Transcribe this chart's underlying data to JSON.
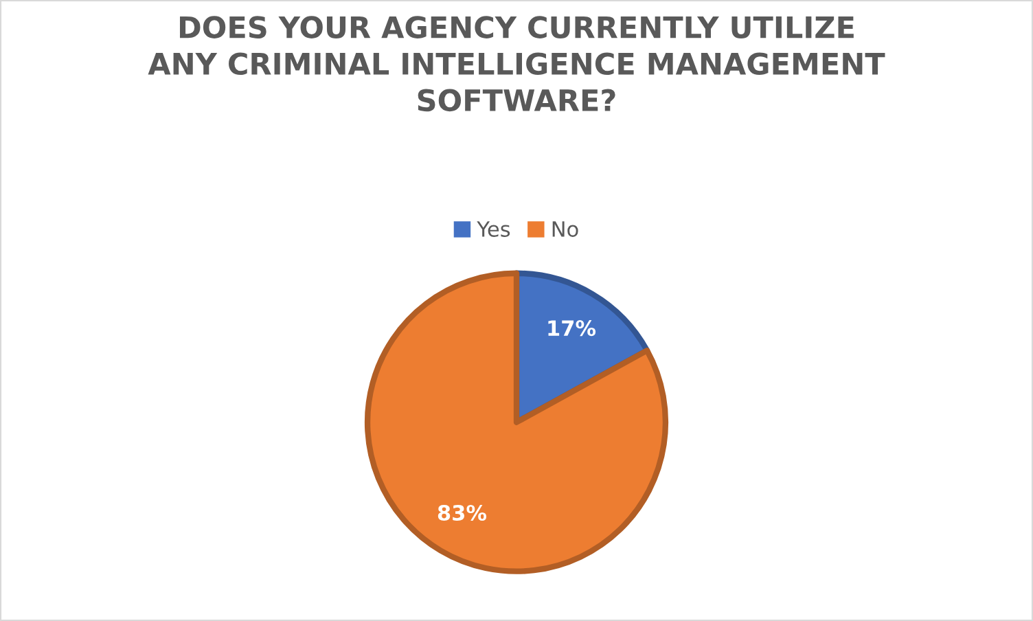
{
  "chart_data": {
    "type": "pie",
    "title": "DOES YOUR AGENCY CURRENTLY UTILIZE\nANY CRIMINAL INTELLIGENCE MANAGEMENT\nSOFTWARE?",
    "categories": [
      "Yes",
      "No"
    ],
    "values": [
      17,
      83
    ],
    "colors": [
      "#4472c4",
      "#ed7d31"
    ],
    "value_labels": [
      "17%",
      "83%"
    ],
    "legend": "top"
  }
}
